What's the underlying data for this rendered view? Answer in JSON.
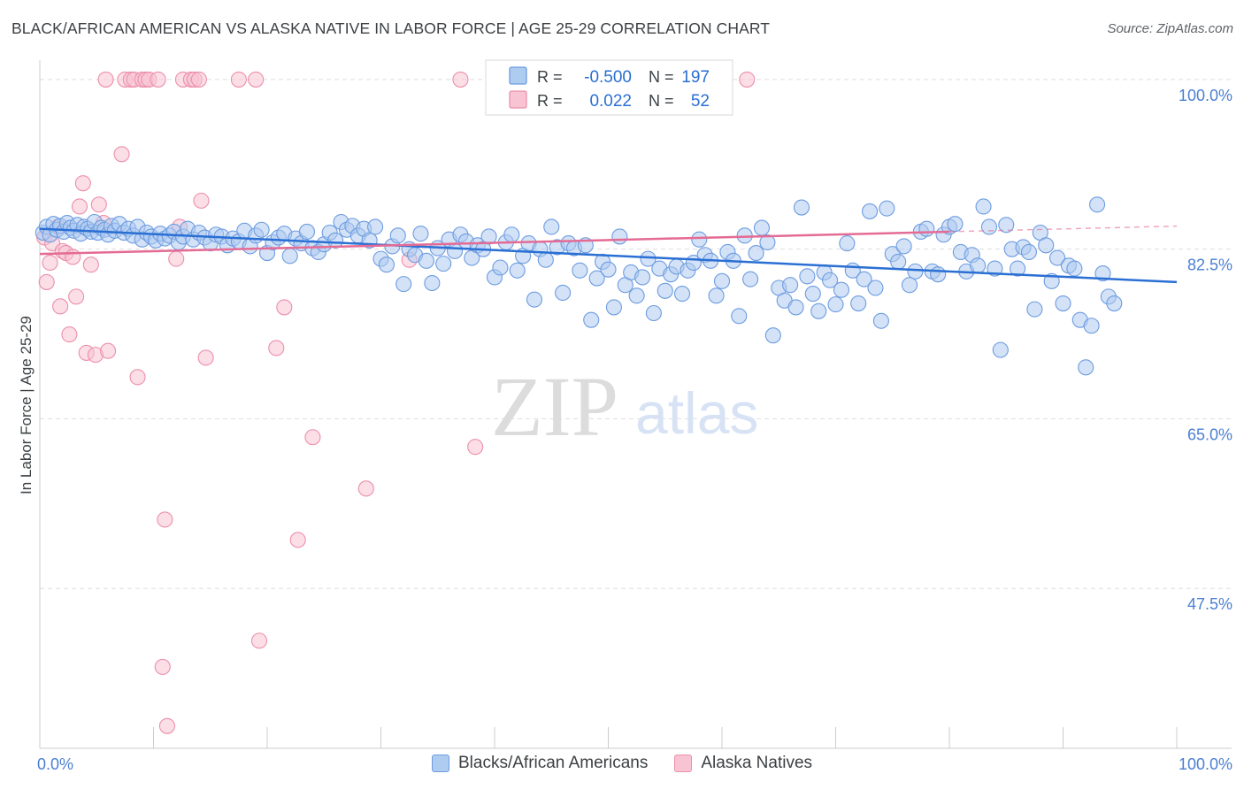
{
  "header": {
    "title": "BLACK/AFRICAN AMERICAN VS ALASKA NATIVE IN LABOR FORCE | AGE 25-29 CORRELATION CHART",
    "source": "Source: ZipAtlas.com"
  },
  "watermark": {
    "zip": "ZIP",
    "atlas": "atlas"
  },
  "colors": {
    "blue_fill": "#aecbf0",
    "blue_stroke": "#6d9ce0",
    "blue_line": "#2a6fd3",
    "pink_fill": "#f8c3d2",
    "pink_stroke": "#ec8fad",
    "pink_line": "#e46b94",
    "tick_label": "#4a7fd1",
    "grid": "#dddddd"
  },
  "legend_box": {
    "rows": [
      {
        "r_label": "R =",
        "r_value": "-0.500",
        "n_label": "N =",
        "n_value": "197"
      },
      {
        "r_label": "R =",
        "r_value": "0.022",
        "n_label": "N =",
        "n_value": "52"
      }
    ]
  },
  "legend_bottom": [
    "Blacks/African Americans",
    "Alaska Natives"
  ],
  "chart_data": {
    "type": "scatter",
    "title": "BLACK/AFRICAN AMERICAN VS ALASKA NATIVE IN LABOR FORCE | AGE 25-29 CORRELATION CHART",
    "xlabel": "",
    "ylabel": "In Labor Force | Age 25-29",
    "xlim": [
      0,
      100
    ],
    "ylim": [
      31,
      102
    ],
    "x_tick_labels": [
      "0.0%",
      "100.0%"
    ],
    "y_ticks": [
      47.5,
      65.0,
      82.5,
      100.0
    ],
    "y_tick_labels": [
      "47.5%",
      "65.0%",
      "82.5%",
      "100.0%"
    ],
    "grid": "horizontal dashed",
    "series": [
      {
        "name": "Blacks/African Americans",
        "r": -0.5,
        "n": 197,
        "trend": {
          "x": [
            0,
            100
          ],
          "y": [
            84.6,
            79.1
          ]
        },
        "points": [
          [
            0.3,
            84.2
          ],
          [
            0.6,
            84.8
          ],
          [
            0.9,
            84.0
          ],
          [
            1.2,
            85.1
          ],
          [
            1.5,
            84.5
          ],
          [
            1.8,
            84.9
          ],
          [
            2.1,
            84.3
          ],
          [
            2.4,
            85.2
          ],
          [
            2.7,
            84.7
          ],
          [
            3.0,
            84.4
          ],
          [
            3.3,
            85.0
          ],
          [
            3.6,
            84.1
          ],
          [
            3.9,
            84.8
          ],
          [
            4.2,
            84.6
          ],
          [
            4.5,
            84.3
          ],
          [
            4.8,
            85.3
          ],
          [
            5.1,
            84.2
          ],
          [
            5.4,
            84.7
          ],
          [
            5.7,
            84.5
          ],
          [
            6.0,
            84.0
          ],
          [
            6.3,
            84.9
          ],
          [
            6.6,
            84.4
          ],
          [
            7.0,
            85.1
          ],
          [
            7.4,
            84.2
          ],
          [
            7.8,
            84.6
          ],
          [
            8.2,
            83.9
          ],
          [
            8.6,
            84.8
          ],
          [
            9.0,
            83.5
          ],
          [
            9.4,
            84.2
          ],
          [
            9.8,
            83.8
          ],
          [
            10.2,
            83.4
          ],
          [
            10.6,
            84.1
          ],
          [
            11.0,
            83.6
          ],
          [
            11.4,
            83.9
          ],
          [
            11.8,
            84.3
          ],
          [
            12.2,
            83.2
          ],
          [
            12.6,
            83.8
          ],
          [
            13.0,
            84.6
          ],
          [
            13.5,
            83.5
          ],
          [
            14.0,
            84.2
          ],
          [
            14.5,
            83.7
          ],
          [
            15.0,
            83.1
          ],
          [
            15.5,
            84.0
          ],
          [
            16.0,
            83.8
          ],
          [
            16.5,
            82.9
          ],
          [
            17.0,
            83.6
          ],
          [
            17.5,
            83.3
          ],
          [
            18.0,
            84.4
          ],
          [
            18.5,
            82.8
          ],
          [
            19.0,
            83.9
          ],
          [
            19.5,
            84.5
          ],
          [
            20.0,
            82.1
          ],
          [
            20.5,
            83.2
          ],
          [
            21.0,
            83.7
          ],
          [
            21.5,
            84.1
          ],
          [
            22.0,
            81.8
          ],
          [
            22.5,
            83.6
          ],
          [
            23.0,
            83.1
          ],
          [
            23.5,
            84.3
          ],
          [
            24.0,
            82.6
          ],
          [
            24.5,
            82.2
          ],
          [
            25.0,
            83.0
          ],
          [
            25.5,
            84.2
          ],
          [
            26.0,
            83.4
          ],
          [
            26.5,
            85.3
          ],
          [
            27.0,
            84.5
          ],
          [
            27.5,
            84.9
          ],
          [
            28.0,
            83.9
          ],
          [
            28.5,
            84.6
          ],
          [
            29.0,
            83.4
          ],
          [
            29.5,
            84.8
          ],
          [
            30.0,
            81.5
          ],
          [
            30.5,
            80.9
          ],
          [
            31.0,
            82.8
          ],
          [
            31.5,
            83.9
          ],
          [
            32.0,
            78.9
          ],
          [
            32.5,
            82.5
          ],
          [
            33.0,
            81.9
          ],
          [
            33.5,
            84.1
          ],
          [
            34.0,
            81.3
          ],
          [
            34.5,
            79.0
          ],
          [
            35.0,
            82.6
          ],
          [
            35.5,
            81.0
          ],
          [
            36.0,
            83.5
          ],
          [
            36.5,
            82.3
          ],
          [
            37.0,
            84.0
          ],
          [
            37.5,
            83.3
          ],
          [
            38.0,
            81.6
          ],
          [
            38.5,
            82.9
          ],
          [
            39.0,
            82.5
          ],
          [
            39.5,
            83.8
          ],
          [
            40.0,
            79.6
          ],
          [
            40.5,
            80.6
          ],
          [
            41.0,
            83.2
          ],
          [
            41.5,
            84.0
          ],
          [
            42.0,
            80.3
          ],
          [
            42.5,
            81.8
          ],
          [
            43.0,
            83.1
          ],
          [
            43.5,
            77.3
          ],
          [
            44.0,
            82.5
          ],
          [
            44.5,
            81.4
          ],
          [
            45.0,
            84.8
          ],
          [
            45.5,
            82.7
          ],
          [
            46.0,
            78.0
          ],
          [
            46.5,
            83.1
          ],
          [
            47.0,
            82.6
          ],
          [
            47.5,
            80.3
          ],
          [
            48.0,
            82.9
          ],
          [
            48.5,
            75.2
          ],
          [
            49.0,
            79.5
          ],
          [
            49.5,
            81.2
          ],
          [
            50.0,
            80.4
          ],
          [
            50.5,
            76.5
          ],
          [
            51.0,
            83.8
          ],
          [
            51.5,
            78.8
          ],
          [
            52.0,
            80.1
          ],
          [
            52.5,
            77.7
          ],
          [
            53.0,
            79.6
          ],
          [
            53.5,
            81.5
          ],
          [
            54.0,
            75.9
          ],
          [
            54.5,
            80.5
          ],
          [
            55.0,
            78.2
          ],
          [
            55.5,
            79.9
          ],
          [
            56.0,
            80.7
          ],
          [
            56.5,
            77.9
          ],
          [
            57.0,
            80.3
          ],
          [
            57.5,
            81.1
          ],
          [
            58.0,
            83.5
          ],
          [
            58.5,
            81.9
          ],
          [
            59.0,
            81.3
          ],
          [
            59.5,
            77.7
          ],
          [
            60.0,
            79.2
          ],
          [
            60.5,
            82.2
          ],
          [
            61.0,
            81.3
          ],
          [
            61.5,
            75.6
          ],
          [
            62.0,
            83.9
          ],
          [
            62.5,
            79.4
          ],
          [
            63.0,
            82.1
          ],
          [
            63.5,
            84.7
          ],
          [
            64.0,
            83.2
          ],
          [
            64.5,
            73.6
          ],
          [
            65.0,
            78.5
          ],
          [
            65.5,
            77.2
          ],
          [
            66.0,
            78.8
          ],
          [
            66.5,
            76.5
          ],
          [
            67.0,
            86.8
          ],
          [
            67.5,
            79.7
          ],
          [
            68.0,
            77.9
          ],
          [
            68.5,
            76.1
          ],
          [
            69.0,
            80.1
          ],
          [
            69.5,
            79.3
          ],
          [
            70.0,
            76.8
          ],
          [
            70.5,
            78.3
          ],
          [
            71.0,
            83.1
          ],
          [
            71.5,
            80.3
          ],
          [
            72.0,
            76.9
          ],
          [
            72.5,
            79.4
          ],
          [
            73.0,
            86.4
          ],
          [
            73.5,
            78.5
          ],
          [
            74.0,
            75.1
          ],
          [
            74.5,
            86.7
          ],
          [
            75.0,
            82.0
          ],
          [
            75.5,
            81.2
          ],
          [
            76.0,
            82.8
          ],
          [
            76.5,
            78.8
          ],
          [
            77.0,
            80.2
          ],
          [
            77.5,
            84.3
          ],
          [
            78.0,
            84.6
          ],
          [
            78.5,
            80.2
          ],
          [
            79.0,
            79.9
          ],
          [
            79.5,
            84.0
          ],
          [
            80.0,
            84.8
          ],
          [
            80.5,
            85.1
          ],
          [
            81.0,
            82.2
          ],
          [
            81.5,
            80.2
          ],
          [
            82.0,
            81.9
          ],
          [
            82.5,
            80.8
          ],
          [
            83.0,
            86.9
          ],
          [
            83.5,
            84.8
          ],
          [
            84.0,
            80.5
          ],
          [
            84.5,
            72.1
          ],
          [
            85.0,
            85.0
          ],
          [
            85.5,
            82.5
          ],
          [
            86.0,
            80.5
          ],
          [
            86.5,
            82.7
          ],
          [
            87.0,
            82.2
          ],
          [
            87.5,
            76.3
          ],
          [
            88.0,
            84.2
          ],
          [
            88.5,
            82.9
          ],
          [
            89.0,
            79.2
          ],
          [
            89.5,
            81.6
          ],
          [
            90.0,
            76.9
          ],
          [
            90.5,
            80.8
          ],
          [
            91.0,
            80.5
          ],
          [
            91.5,
            75.2
          ],
          [
            92.0,
            70.3
          ],
          [
            92.5,
            74.6
          ],
          [
            93.0,
            87.1
          ],
          [
            93.5,
            80.0
          ],
          [
            94.0,
            77.6
          ],
          [
            94.5,
            76.9
          ]
        ]
      },
      {
        "name": "Alaska Natives",
        "r": 0.022,
        "n": 52,
        "trend": {
          "x": [
            0,
            80
          ],
          "y": [
            82.0,
            84.3
          ]
        },
        "points": [
          [
            0.4,
            83.7
          ],
          [
            0.6,
            79.1
          ],
          [
            0.9,
            81.1
          ],
          [
            1.1,
            83.1
          ],
          [
            1.6,
            84.8
          ],
          [
            1.8,
            76.6
          ],
          [
            2.0,
            82.3
          ],
          [
            2.3,
            82.1
          ],
          [
            2.6,
            73.7
          ],
          [
            2.9,
            81.7
          ],
          [
            3.2,
            77.6
          ],
          [
            3.5,
            86.9
          ],
          [
            3.8,
            89.3
          ],
          [
            4.1,
            71.8
          ],
          [
            4.5,
            80.9
          ],
          [
            4.9,
            71.6
          ],
          [
            5.2,
            87.1
          ],
          [
            5.6,
            85.2
          ],
          [
            6.0,
            72.0
          ],
          [
            5.8,
            100.0
          ],
          [
            7.2,
            92.3
          ],
          [
            7.5,
            100.0
          ],
          [
            8.0,
            100.0
          ],
          [
            8.3,
            100.0
          ],
          [
            8.6,
            69.3
          ],
          [
            9.0,
            100.0
          ],
          [
            9.3,
            100.0
          ],
          [
            9.6,
            100.0
          ],
          [
            10.4,
            100.0
          ],
          [
            10.8,
            39.4
          ],
          [
            11.0,
            54.6
          ],
          [
            11.2,
            33.3
          ],
          [
            12.0,
            81.5
          ],
          [
            12.3,
            84.8
          ],
          [
            12.6,
            100.0
          ],
          [
            13.3,
            100.0
          ],
          [
            13.6,
            100.0
          ],
          [
            14.0,
            100.0
          ],
          [
            14.2,
            87.5
          ],
          [
            14.6,
            71.3
          ],
          [
            17.5,
            100.0
          ],
          [
            19.0,
            100.0
          ],
          [
            19.3,
            42.1
          ],
          [
            20.8,
            72.3
          ],
          [
            21.5,
            76.5
          ],
          [
            22.7,
            52.5
          ],
          [
            24.0,
            63.1
          ],
          [
            28.7,
            57.8
          ],
          [
            32.5,
            81.4
          ],
          [
            37.0,
            100.0
          ],
          [
            38.3,
            62.1
          ],
          [
            62.2,
            100.0
          ]
        ]
      }
    ]
  }
}
